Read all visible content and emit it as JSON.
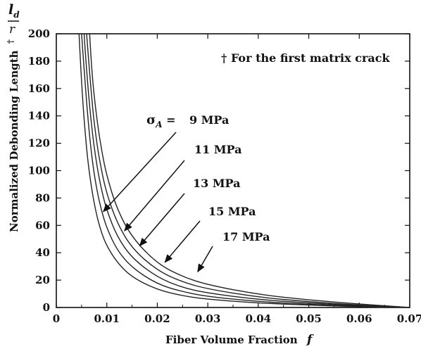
{
  "chart_data": {
    "type": "line",
    "xlabel": "Fiber Volume Fraction",
    "xlabel_symbol": "f",
    "ylabel": "Normalized Debonding Length",
    "ylabel_mark": "†",
    "ylabel_symbol_num": "l",
    "ylabel_symbol_sub": "d",
    "ylabel_symbol_den": "r",
    "xlim": [
      0,
      0.07
    ],
    "ylim": [
      0,
      200
    ],
    "xticks": [
      "0",
      "0.01",
      "0.02",
      "0.03",
      "0.04",
      "0.05",
      "0.06",
      "0.07"
    ],
    "yticks": [
      "0",
      "20",
      "40",
      "60",
      "80",
      "100",
      "120",
      "140",
      "160",
      "180",
      "200"
    ],
    "grid": false,
    "footnote": "† For the first matrix crack",
    "series_prefix": "σ",
    "series_prefix_sub": "A",
    "series_prefix_eq": " =",
    "series": [
      {
        "name": "9 MPa",
        "x": [
          0.0045,
          0.005,
          0.006,
          0.007,
          0.008,
          0.009,
          0.01,
          0.012,
          0.015,
          0.02,
          0.025,
          0.03,
          0.04,
          0.05,
          0.06,
          0.066
        ],
        "y": [
          200,
          162,
          114,
          86,
          67,
          54,
          45,
          33,
          22,
          13,
          8.5,
          6,
          3.2,
          1.7,
          0.6,
          0
        ]
      },
      {
        "name": "11 MPa",
        "x": [
          0.005,
          0.006,
          0.007,
          0.008,
          0.009,
          0.01,
          0.012,
          0.015,
          0.02,
          0.025,
          0.03,
          0.04,
          0.05,
          0.06,
          0.067
        ],
        "y": [
          200,
          148,
          110,
          86,
          70,
          58,
          42,
          29,
          17,
          11.5,
          8,
          4.3,
          2.3,
          0.9,
          0
        ]
      },
      {
        "name": "13 MPa",
        "x": [
          0.0055,
          0.006,
          0.007,
          0.008,
          0.009,
          0.01,
          0.012,
          0.015,
          0.02,
          0.025,
          0.03,
          0.04,
          0.05,
          0.06,
          0.068
        ],
        "y": [
          200,
          172,
          131,
          104,
          85,
          71,
          52,
          36,
          22,
          14.5,
          10.5,
          5.8,
          3.2,
          1.3,
          0
        ]
      },
      {
        "name": "15 MPa",
        "x": [
          0.006,
          0.007,
          0.008,
          0.009,
          0.01,
          0.012,
          0.015,
          0.02,
          0.025,
          0.03,
          0.04,
          0.05,
          0.06,
          0.069
        ],
        "y": [
          200,
          151,
          120,
          99,
          83,
          62,
          43,
          27,
          18.5,
          13.5,
          7.5,
          4.2,
          1.8,
          0
        ]
      },
      {
        "name": "17 MPa",
        "x": [
          0.0066,
          0.007,
          0.008,
          0.009,
          0.01,
          0.012,
          0.015,
          0.02,
          0.025,
          0.03,
          0.04,
          0.05,
          0.06,
          0.07
        ],
        "y": [
          200,
          172,
          138,
          114,
          96,
          72,
          51,
          32,
          22.5,
          16.5,
          9.5,
          5.5,
          2.5,
          0
        ]
      }
    ],
    "arrows": [
      {
        "series": "9 MPa",
        "point": [
          0.0093,
          70
        ]
      },
      {
        "series": "11 MPa",
        "point": [
          0.0135,
          56
        ]
      },
      {
        "series": "13 MPa",
        "point": [
          0.0165,
          45
        ]
      },
      {
        "series": "15 MPa",
        "point": [
          0.0215,
          33
        ]
      },
      {
        "series": "17 MPa",
        "point": [
          0.028,
          26
        ]
      }
    ]
  }
}
